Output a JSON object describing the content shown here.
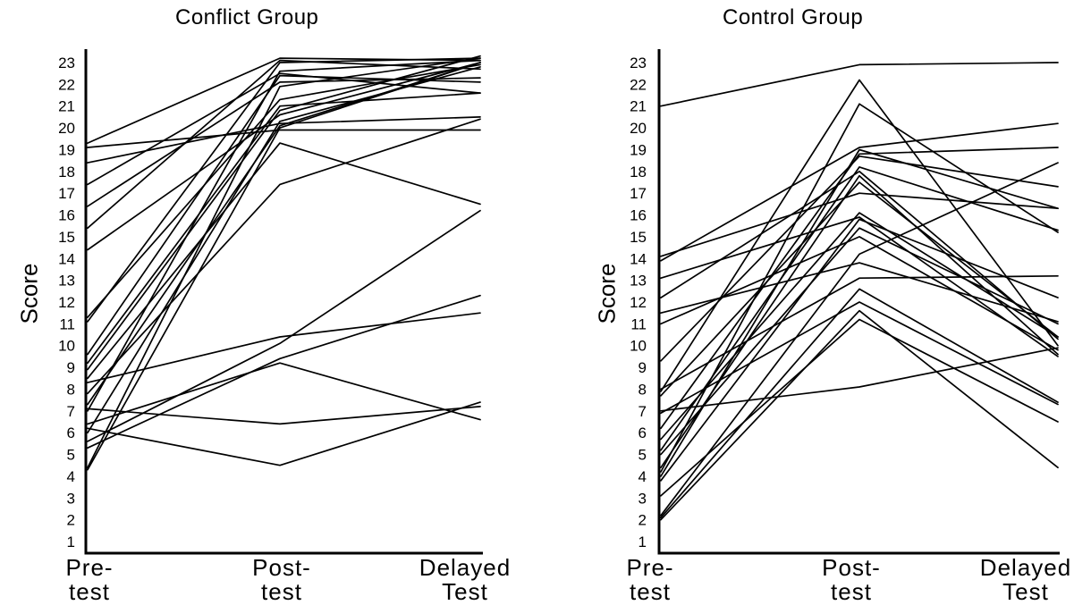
{
  "chart_data": [
    {
      "type": "line",
      "title": "Conflict Group",
      "ylabel": "Score",
      "categories": [
        [
          "Pre-",
          "test"
        ],
        [
          "Post-",
          "test"
        ],
        [
          "Delayed",
          "Test"
        ]
      ],
      "ylim": [
        1,
        23
      ],
      "yticks": [
        1,
        2,
        3,
        4,
        5,
        6,
        7,
        8,
        9,
        10,
        11,
        12,
        13,
        14,
        15,
        16,
        17,
        18,
        19,
        20,
        21,
        22,
        23
      ],
      "grid": false,
      "series": [
        {
          "values": [
            19.3,
            23.2,
            23.1
          ]
        },
        {
          "values": [
            19.1,
            19.9,
            19.9
          ]
        },
        {
          "values": [
            18.4,
            20.2,
            20.5
          ]
        },
        {
          "values": [
            17.4,
            22.5,
            21.6
          ]
        },
        {
          "values": [
            16.4,
            22.1,
            22.3
          ]
        },
        {
          "values": [
            15.4,
            23.1,
            22.7
          ]
        },
        {
          "values": [
            14.4,
            20.6,
            23.0
          ]
        },
        {
          "values": [
            11.3,
            21.3,
            22.9
          ]
        },
        {
          "values": [
            11.1,
            23.0,
            23.2
          ]
        },
        {
          "values": [
            9.6,
            22.4,
            22.1
          ]
        },
        {
          "values": [
            9.2,
            21.0,
            21.6
          ]
        },
        {
          "values": [
            8.9,
            20.8,
            23.3
          ]
        },
        {
          "values": [
            8.5,
            19.3,
            16.5
          ]
        },
        {
          "values": [
            8.3,
            10.4,
            11.5
          ]
        },
        {
          "values": [
            7.8,
            17.4,
            20.4
          ]
        },
        {
          "values": [
            7.3,
            20.1,
            23.0
          ]
        },
        {
          "values": [
            7.1,
            6.4,
            7.2
          ]
        },
        {
          "values": [
            7.0,
            22.6,
            23.1
          ]
        },
        {
          "values": [
            6.4,
            9.2,
            6.6
          ]
        },
        {
          "values": [
            6.2,
            4.5,
            7.4
          ]
        },
        {
          "values": [
            6.0,
            20.3,
            22.8
          ]
        },
        {
          "values": [
            5.6,
            10.1,
            16.2
          ]
        },
        {
          "values": [
            5.3,
            9.4,
            12.3
          ]
        },
        {
          "values": [
            4.4,
            21.9,
            23.2
          ]
        },
        {
          "values": [
            4.3,
            20.0,
            23.0
          ]
        }
      ]
    },
    {
      "type": "line",
      "title": "Control Group",
      "ylabel": "Score",
      "categories": [
        [
          "Pre-",
          "test"
        ],
        [
          "Post-",
          "test"
        ],
        [
          "Delayed",
          "Test"
        ]
      ],
      "ylim": [
        1,
        23
      ],
      "yticks": [
        1,
        2,
        3,
        4,
        5,
        6,
        7,
        8,
        9,
        10,
        11,
        12,
        13,
        14,
        15,
        16,
        17,
        18,
        19,
        20,
        21,
        22,
        23
      ],
      "grid": false,
      "series": [
        {
          "values": [
            21.0,
            22.9,
            23.0
          ]
        },
        {
          "values": [
            14.1,
            17.0,
            16.3
          ]
        },
        {
          "values": [
            13.9,
            19.1,
            20.2
          ]
        },
        {
          "values": [
            13.1,
            15.9,
            9.5
          ]
        },
        {
          "values": [
            12.2,
            18.0,
            10.3
          ]
        },
        {
          "values": [
            11.5,
            13.8,
            11.1
          ]
        },
        {
          "values": [
            11.0,
            15.0,
            9.8
          ]
        },
        {
          "values": [
            9.3,
            18.7,
            17.3
          ]
        },
        {
          "values": [
            8.0,
            13.1,
            13.2
          ]
        },
        {
          "values": [
            7.9,
            22.2,
            10.0
          ]
        },
        {
          "values": [
            7.7,
            17.5,
            10.4
          ]
        },
        {
          "values": [
            7.0,
            8.1,
            9.9
          ]
        },
        {
          "values": [
            6.9,
            12.0,
            7.3
          ]
        },
        {
          "values": [
            6.2,
            18.8,
            19.1
          ]
        },
        {
          "values": [
            5.7,
            16.1,
            10.4
          ]
        },
        {
          "values": [
            5.2,
            18.2,
            15.3
          ]
        },
        {
          "values": [
            5.0,
            15.4,
            11.0
          ]
        },
        {
          "values": [
            4.4,
            17.8,
            9.6
          ]
        },
        {
          "values": [
            4.2,
            21.1,
            15.2
          ]
        },
        {
          "values": [
            4.0,
            19.0,
            16.3
          ]
        },
        {
          "values": [
            3.8,
            15.8,
            12.2
          ]
        },
        {
          "values": [
            3.1,
            11.2,
            6.5
          ]
        },
        {
          "values": [
            2.1,
            12.6,
            7.4
          ]
        },
        {
          "values": [
            2.0,
            11.6,
            4.4
          ]
        },
        {
          "values": [
            2.2,
            14.2,
            18.4
          ]
        }
      ]
    }
  ]
}
